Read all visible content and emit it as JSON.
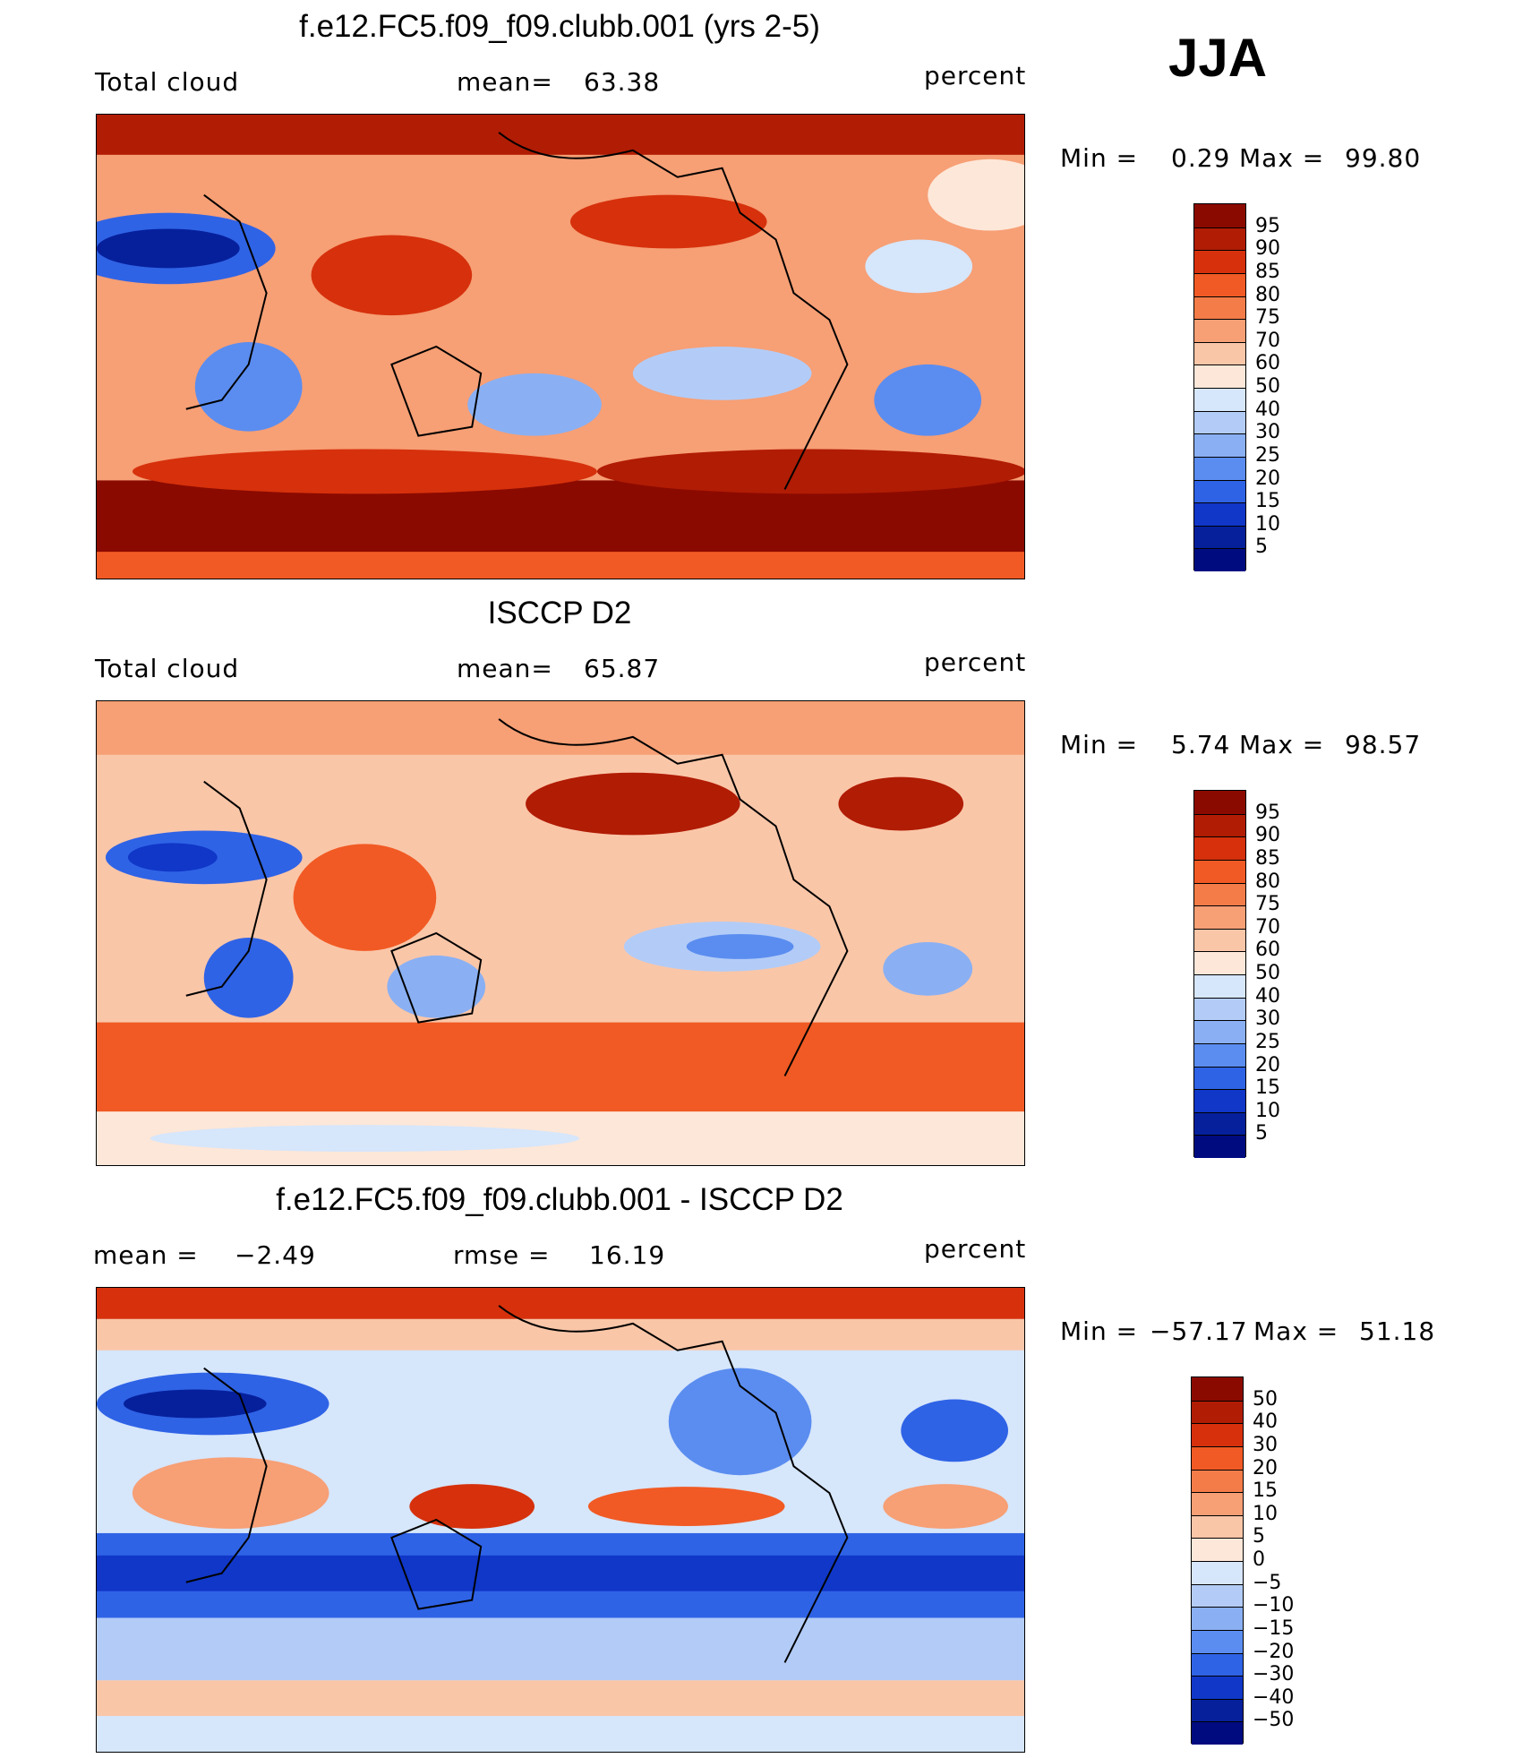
{
  "season": "JJA",
  "units": "percent",
  "panels": [
    {
      "title": "f.e12.FC5.f09_f09.clubb.001 (yrs 2-5)",
      "left_label": "Total cloud",
      "stat1_label": "mean=",
      "stat1_value": "63.38",
      "units": "percent",
      "min_label": "Min  =",
      "min_value": "0.29",
      "max_label": "Max  =",
      "max_value": "99.80",
      "colorbar_levels": [
        "95",
        "90",
        "85",
        "80",
        "75",
        "70",
        "60",
        "50",
        "40",
        "30",
        "25",
        "20",
        "15",
        "10",
        "5"
      ],
      "colorbar_colors": [
        "#8b0a00",
        "#b11c04",
        "#d6310c",
        "#f15a24",
        "#f47c48",
        "#f79f75",
        "#fac6a8",
        "#fde7d8",
        "#d6e6fb",
        "#b3ccf7",
        "#8ab0f3",
        "#5b8df0",
        "#2f63e6",
        "#1037c8",
        "#06209c",
        "#000b80"
      ]
    },
    {
      "title": "ISCCP D2",
      "left_label": "Total cloud",
      "stat1_label": "mean=",
      "stat1_value": "65.87",
      "units": "percent",
      "min_label": "Min  =",
      "min_value": "5.74",
      "max_label": "Max  =",
      "max_value": "98.57",
      "colorbar_levels": [
        "95",
        "90",
        "85",
        "80",
        "75",
        "70",
        "60",
        "50",
        "40",
        "30",
        "25",
        "20",
        "15",
        "10",
        "5"
      ],
      "colorbar_colors": [
        "#8b0a00",
        "#b11c04",
        "#d6310c",
        "#f15a24",
        "#f47c48",
        "#f79f75",
        "#fac6a8",
        "#fde7d8",
        "#d6e6fb",
        "#b3ccf7",
        "#8ab0f3",
        "#5b8df0",
        "#2f63e6",
        "#1037c8",
        "#06209c",
        "#000b80"
      ]
    },
    {
      "title": "f.e12.FC5.f09_f09.clubb.001 - ISCCP D2",
      "left_label": "mean  =",
      "left_value": "−2.49",
      "stat1_label": "rmse  =",
      "stat1_value": "16.19",
      "units": "percent",
      "min_label": "Min  =",
      "min_value": "−57.17",
      "max_label": "Max  =",
      "max_value": "51.18",
      "colorbar_levels": [
        "50",
        "40",
        "30",
        "20",
        "15",
        "10",
        "5",
        "0",
        "−5",
        "−10",
        "−15",
        "−20",
        "−30",
        "−40",
        "−50"
      ],
      "colorbar_colors": [
        "#8b0a00",
        "#b11c04",
        "#d6310c",
        "#f15a24",
        "#f47c48",
        "#f79f75",
        "#fac6a8",
        "#fde7d8",
        "#d6e6fb",
        "#b3ccf7",
        "#8ab0f3",
        "#5b8df0",
        "#2f63e6",
        "#1037c8",
        "#06209c",
        "#000b80"
      ]
    }
  ]
}
